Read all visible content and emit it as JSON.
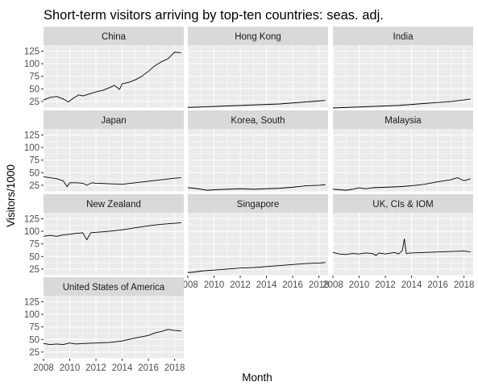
{
  "chart_data": {
    "type": "line",
    "title": "Short-term visitors arriving by top-ten countries: seas. adj.",
    "xlabel": "Month",
    "ylabel": "Visitors/1000",
    "x_range": [
      2008,
      2018.7
    ],
    "x_ticks": [
      2008,
      2010,
      2012,
      2014,
      2016,
      2018
    ],
    "y_range": [
      12,
      137
    ],
    "y_ticks": [
      25,
      50,
      75,
      100,
      125
    ],
    "grid": true,
    "legend": "none",
    "panel_background": "#ebebeb",
    "strip_background": "#d9d9d9",
    "line_color": "#000000",
    "x_tick_labels_shown_on": [
      "Singapore",
      "UK, CIs & IOM",
      "United States of America"
    ],
    "panels": [
      {
        "name": "China",
        "values": [
          [
            2008,
            28
          ],
          [
            2008.5,
            33
          ],
          [
            2009,
            35
          ],
          [
            2009.5,
            30
          ],
          [
            2009.9,
            24
          ],
          [
            2010.3,
            32
          ],
          [
            2010.7,
            38
          ],
          [
            2011,
            36
          ],
          [
            2011.5,
            40
          ],
          [
            2012,
            44
          ],
          [
            2012.5,
            47
          ],
          [
            2013,
            52
          ],
          [
            2013.4,
            57
          ],
          [
            2013.8,
            49
          ],
          [
            2014,
            60
          ],
          [
            2014.5,
            63
          ],
          [
            2015,
            68
          ],
          [
            2015.5,
            75
          ],
          [
            2016,
            85
          ],
          [
            2016.5,
            96
          ],
          [
            2017,
            104
          ],
          [
            2017.5,
            110
          ],
          [
            2018,
            123
          ],
          [
            2018.5,
            122
          ]
        ]
      },
      {
        "name": "Hong Kong",
        "values": [
          [
            2008,
            13
          ],
          [
            2009,
            14
          ],
          [
            2010,
            15
          ],
          [
            2011,
            16
          ],
          [
            2012,
            17
          ],
          [
            2013,
            18
          ],
          [
            2014,
            19
          ],
          [
            2015,
            20
          ],
          [
            2016,
            22
          ],
          [
            2017,
            24
          ],
          [
            2018,
            26
          ],
          [
            2018.5,
            27
          ]
        ]
      },
      {
        "name": "India",
        "values": [
          [
            2008,
            12
          ],
          [
            2009,
            13
          ],
          [
            2010,
            14
          ],
          [
            2011,
            15
          ],
          [
            2012,
            16
          ],
          [
            2013,
            17
          ],
          [
            2014,
            19
          ],
          [
            2015,
            21
          ],
          [
            2016,
            23
          ],
          [
            2017,
            25
          ],
          [
            2018,
            28
          ],
          [
            2018.5,
            30
          ]
        ]
      },
      {
        "name": "Japan",
        "values": [
          [
            2008,
            42
          ],
          [
            2008.5,
            40
          ],
          [
            2009,
            38
          ],
          [
            2009.5,
            34
          ],
          [
            2009.8,
            22
          ],
          [
            2010,
            30
          ],
          [
            2010.5,
            30
          ],
          [
            2011,
            29
          ],
          [
            2011.3,
            25
          ],
          [
            2011.7,
            30
          ],
          [
            2012,
            29
          ],
          [
            2013,
            28
          ],
          [
            2014,
            27
          ],
          [
            2015,
            30
          ],
          [
            2016,
            33
          ],
          [
            2017,
            36
          ],
          [
            2018,
            39
          ],
          [
            2018.5,
            40
          ]
        ]
      },
      {
        "name": "Korea, South",
        "values": [
          [
            2008,
            20
          ],
          [
            2008.5,
            19
          ],
          [
            2009,
            17
          ],
          [
            2009.5,
            15
          ],
          [
            2010,
            16
          ],
          [
            2011,
            17
          ],
          [
            2012,
            18
          ],
          [
            2013,
            17
          ],
          [
            2014,
            18
          ],
          [
            2015,
            19
          ],
          [
            2016,
            21
          ],
          [
            2017,
            24
          ],
          [
            2018,
            25
          ],
          [
            2018.5,
            26
          ]
        ]
      },
      {
        "name": "Malaysia",
        "values": [
          [
            2008,
            17
          ],
          [
            2008.5,
            16
          ],
          [
            2009,
            15
          ],
          [
            2009.5,
            17
          ],
          [
            2010,
            20
          ],
          [
            2010.5,
            18
          ],
          [
            2011,
            20
          ],
          [
            2012,
            21
          ],
          [
            2013,
            22
          ],
          [
            2014,
            24
          ],
          [
            2015,
            27
          ],
          [
            2016,
            32
          ],
          [
            2017,
            36
          ],
          [
            2017.5,
            40
          ],
          [
            2018,
            34
          ],
          [
            2018.5,
            38
          ]
        ]
      },
      {
        "name": "New Zealand",
        "values": [
          [
            2008,
            90
          ],
          [
            2008.5,
            92
          ],
          [
            2009,
            90
          ],
          [
            2009.5,
            93
          ],
          [
            2010,
            94
          ],
          [
            2010.5,
            96
          ],
          [
            2011,
            97
          ],
          [
            2011.3,
            83
          ],
          [
            2011.6,
            97
          ],
          [
            2012,
            98
          ],
          [
            2013,
            100
          ],
          [
            2014,
            103
          ],
          [
            2015,
            107
          ],
          [
            2016,
            111
          ],
          [
            2017,
            114
          ],
          [
            2018,
            116
          ],
          [
            2018.5,
            117
          ]
        ]
      },
      {
        "name": "Singapore",
        "values": [
          [
            2008,
            18
          ],
          [
            2008.5,
            19
          ],
          [
            2009,
            21
          ],
          [
            2009.5,
            22
          ],
          [
            2010,
            23
          ],
          [
            2011,
            25
          ],
          [
            2012,
            27
          ],
          [
            2013,
            28
          ],
          [
            2014,
            30
          ],
          [
            2015,
            32
          ],
          [
            2016,
            34
          ],
          [
            2017,
            36
          ],
          [
            2018,
            37
          ],
          [
            2018.5,
            38
          ]
        ]
      },
      {
        "name": "UK, CIs & IOM",
        "values": [
          [
            2008,
            58
          ],
          [
            2008.5,
            55
          ],
          [
            2009,
            54
          ],
          [
            2009.5,
            56
          ],
          [
            2010,
            55
          ],
          [
            2010.5,
            57
          ],
          [
            2011,
            56
          ],
          [
            2011.3,
            52
          ],
          [
            2011.5,
            57
          ],
          [
            2012,
            55
          ],
          [
            2012.7,
            58
          ],
          [
            2013,
            55
          ],
          [
            2013.3,
            62
          ],
          [
            2013.45,
            85
          ],
          [
            2013.6,
            56
          ],
          [
            2014,
            57
          ],
          [
            2015,
            58
          ],
          [
            2016,
            59
          ],
          [
            2017,
            60
          ],
          [
            2018,
            61
          ],
          [
            2018.5,
            59
          ]
        ]
      },
      {
        "name": "United States of America",
        "values": [
          [
            2008,
            42
          ],
          [
            2008.5,
            40
          ],
          [
            2009,
            41
          ],
          [
            2009.5,
            40
          ],
          [
            2010,
            43
          ],
          [
            2010.5,
            41
          ],
          [
            2011,
            42
          ],
          [
            2012,
            43
          ],
          [
            2013,
            44
          ],
          [
            2014,
            47
          ],
          [
            2015,
            53
          ],
          [
            2016,
            58
          ],
          [
            2016.5,
            63
          ],
          [
            2017,
            66
          ],
          [
            2017.5,
            70
          ],
          [
            2018,
            68
          ],
          [
            2018.5,
            67
          ]
        ]
      }
    ]
  }
}
